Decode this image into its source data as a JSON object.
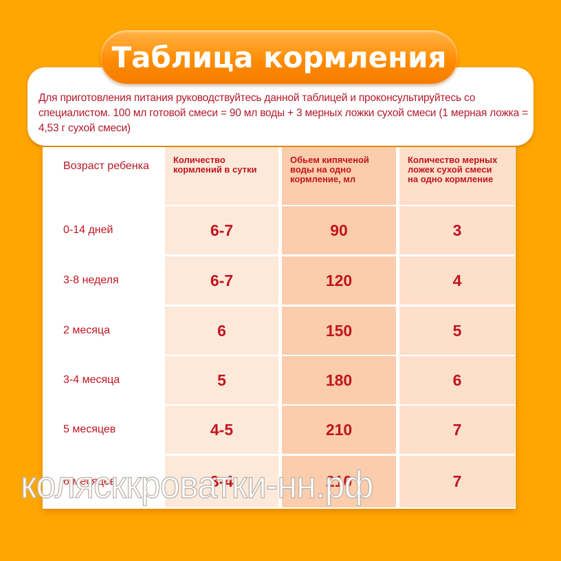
{
  "title": "Таблица кормления",
  "intro": "Для приготовления питания руководствуйтесь данной таблицей и проконсультируйтесь со специалистом. 100 мл готовой смеси = 90 мл воды + 3 мерных ложки сухой смеси (1 мерная ложка = 4,53 г сухой смеси)",
  "colors": {
    "background": "#ffa602",
    "text": "#c1141f",
    "col1": "#fde9da",
    "col2": "#fbcdac",
    "col3": "#fddfca"
  },
  "table": {
    "headers": [
      "Возраст ребенка",
      "Количество кормлений в сутки",
      "Обьем кипяченой воды на одно кормление, мл",
      "Количество мерных ложек сухой смеси на одно кормление"
    ],
    "rows": [
      [
        "0-14 дней",
        "6-7",
        "90",
        "3"
      ],
      [
        "3-8 неделя",
        "6-7",
        "120",
        "4"
      ],
      [
        "2 месяца",
        "6",
        "150",
        "5"
      ],
      [
        "3-4 месяца",
        "5",
        "180",
        "6"
      ],
      [
        "5 месяцев",
        "4-5",
        "210",
        "7"
      ],
      [
        "6 месяцев",
        "3-4",
        "210",
        "7"
      ]
    ]
  },
  "watermark": "колясккроватки-нн.рф"
}
